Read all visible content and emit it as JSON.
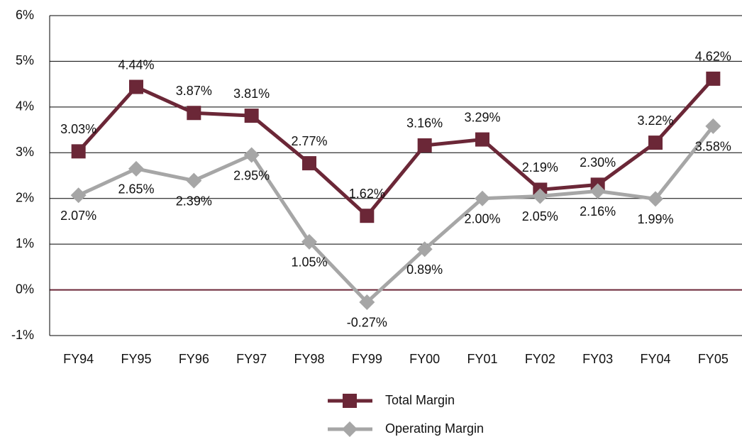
{
  "chart_data": {
    "type": "line",
    "categories": [
      "FY94",
      "FY95",
      "FY96",
      "FY97",
      "FY98",
      "FY99",
      "FY00",
      "FY01",
      "FY02",
      "FY03",
      "FY04",
      "FY05"
    ],
    "series": [
      {
        "name": "Total Margin",
        "color": "#6b2737",
        "marker": "square",
        "values": [
          3.03,
          4.44,
          3.87,
          3.81,
          2.77,
          1.62,
          3.16,
          3.29,
          2.19,
          2.3,
          3.22,
          4.62
        ],
        "value_labels": [
          "3.03%",
          "4.44%",
          "3.87%",
          "3.81%",
          "2.77%",
          "1.62%",
          "3.16%",
          "3.29%",
          "2.19%",
          "2.30%",
          "3.22%",
          "4.62%"
        ]
      },
      {
        "name": "Operating Margin",
        "color": "#a6a6a6",
        "marker": "diamond",
        "values": [
          2.07,
          2.65,
          2.39,
          2.95,
          1.05,
          -0.27,
          0.89,
          2.0,
          2.05,
          2.16,
          1.99,
          3.58
        ],
        "value_labels": [
          "2.07%",
          "2.65%",
          "2.39%",
          "2.95%",
          "1.05%",
          "-0.27%",
          "0.89%",
          "2.00%",
          "2.05%",
          "2.16%",
          "1.99%",
          "3.58%"
        ]
      }
    ],
    "ylim": [
      -1,
      6
    ],
    "yticks": [
      {
        "value": -1,
        "label": "-1%"
      },
      {
        "value": 0,
        "label": "0%"
      },
      {
        "value": 1,
        "label": "1%"
      },
      {
        "value": 2,
        "label": "2%"
      },
      {
        "value": 3,
        "label": "3%"
      },
      {
        "value": 4,
        "label": "4%"
      },
      {
        "value": 5,
        "label": "5%"
      },
      {
        "value": 6,
        "label": "6%"
      }
    ],
    "grid": true,
    "legend": "bottom"
  }
}
